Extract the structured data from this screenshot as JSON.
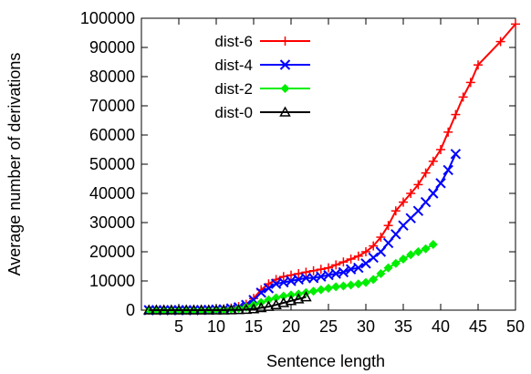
{
  "chart_data": {
    "type": "line",
    "title": "",
    "xlabel": "Sentence length",
    "ylabel": "Average number of derivations",
    "xlim": [
      0,
      50
    ],
    "ylim": [
      0,
      100000
    ],
    "xticks": [
      "5",
      "10",
      "15",
      "20",
      "25",
      "30",
      "35",
      "40",
      "45",
      "50"
    ],
    "yticks": [
      "0",
      "10000",
      "20000",
      "30000",
      "40000",
      "50000",
      "60000",
      "70000",
      "80000",
      "90000",
      "100000"
    ],
    "grid": false,
    "legend_position": "top-left",
    "series": [
      {
        "name": "dist-6",
        "color": "#ff0000",
        "marker": "plus",
        "x": [
          1,
          2,
          3,
          4,
          5,
          6,
          7,
          8,
          9,
          10,
          11,
          12,
          13,
          14,
          15,
          16,
          17,
          18,
          19,
          20,
          21,
          22,
          23,
          24,
          25,
          26,
          27,
          28,
          29,
          30,
          31,
          32,
          33,
          34,
          35,
          36,
          37,
          38,
          39,
          40,
          41,
          42,
          43,
          44,
          45,
          48,
          50
        ],
        "y": [
          0,
          0,
          0,
          0,
          0,
          0,
          0,
          50,
          100,
          200,
          400,
          700,
          1200,
          2000,
          4000,
          7000,
          9000,
          10500,
          11500,
          12000,
          12500,
          13000,
          13500,
          14000,
          14500,
          15500,
          16500,
          17500,
          18500,
          20000,
          22000,
          25000,
          29000,
          34000,
          37000,
          40000,
          43000,
          47000,
          51000,
          55000,
          61000,
          67000,
          73000,
          78000,
          84000,
          92000,
          98000
        ]
      },
      {
        "name": "dist-4",
        "color": "#0000ff",
        "marker": "x",
        "x": [
          1,
          2,
          3,
          4,
          5,
          6,
          7,
          8,
          9,
          10,
          11,
          12,
          13,
          14,
          15,
          16,
          17,
          18,
          19,
          20,
          21,
          22,
          23,
          24,
          25,
          26,
          27,
          28,
          29,
          30,
          31,
          32,
          33,
          34,
          35,
          36,
          37,
          38,
          39,
          40,
          41,
          42
        ],
        "y": [
          0,
          0,
          0,
          0,
          0,
          0,
          0,
          50,
          100,
          200,
          300,
          600,
          1000,
          1800,
          3500,
          6000,
          7500,
          9000,
          9500,
          10000,
          10500,
          11000,
          11000,
          11500,
          12000,
          12500,
          13000,
          14000,
          14500,
          16000,
          18000,
          20000,
          23000,
          26000,
          29000,
          31500,
          34000,
          37000,
          40000,
          43500,
          48000,
          53500
        ]
      },
      {
        "name": "dist-2",
        "color": "#00ee00",
        "marker": "diamond",
        "x": [
          1,
          2,
          3,
          4,
          5,
          6,
          7,
          8,
          9,
          10,
          11,
          12,
          13,
          14,
          15,
          16,
          17,
          18,
          19,
          20,
          21,
          22,
          23,
          24,
          25,
          26,
          27,
          28,
          29,
          30,
          31,
          32,
          33,
          34,
          35,
          36,
          37,
          38,
          39
        ],
        "y": [
          0,
          0,
          0,
          0,
          0,
          0,
          0,
          0,
          50,
          100,
          150,
          300,
          600,
          1000,
          1800,
          2600,
          3500,
          4200,
          4800,
          5200,
          5500,
          6000,
          6500,
          7000,
          7500,
          8000,
          8300,
          8600,
          9000,
          9500,
          10500,
          12500,
          14500,
          16000,
          17500,
          19000,
          20000,
          21000,
          22500
        ]
      },
      {
        "name": "dist-0",
        "color": "#000000",
        "marker": "triangle",
        "x": [
          1,
          2,
          3,
          4,
          5,
          6,
          7,
          8,
          9,
          10,
          11,
          12,
          13,
          14,
          15,
          16,
          17,
          18,
          19,
          20,
          21,
          22
        ],
        "y": [
          0,
          0,
          0,
          0,
          0,
          0,
          0,
          0,
          0,
          0,
          0,
          50,
          100,
          200,
          400,
          800,
          1200,
          1800,
          2500,
          3200,
          3800,
          4500
        ]
      }
    ]
  }
}
